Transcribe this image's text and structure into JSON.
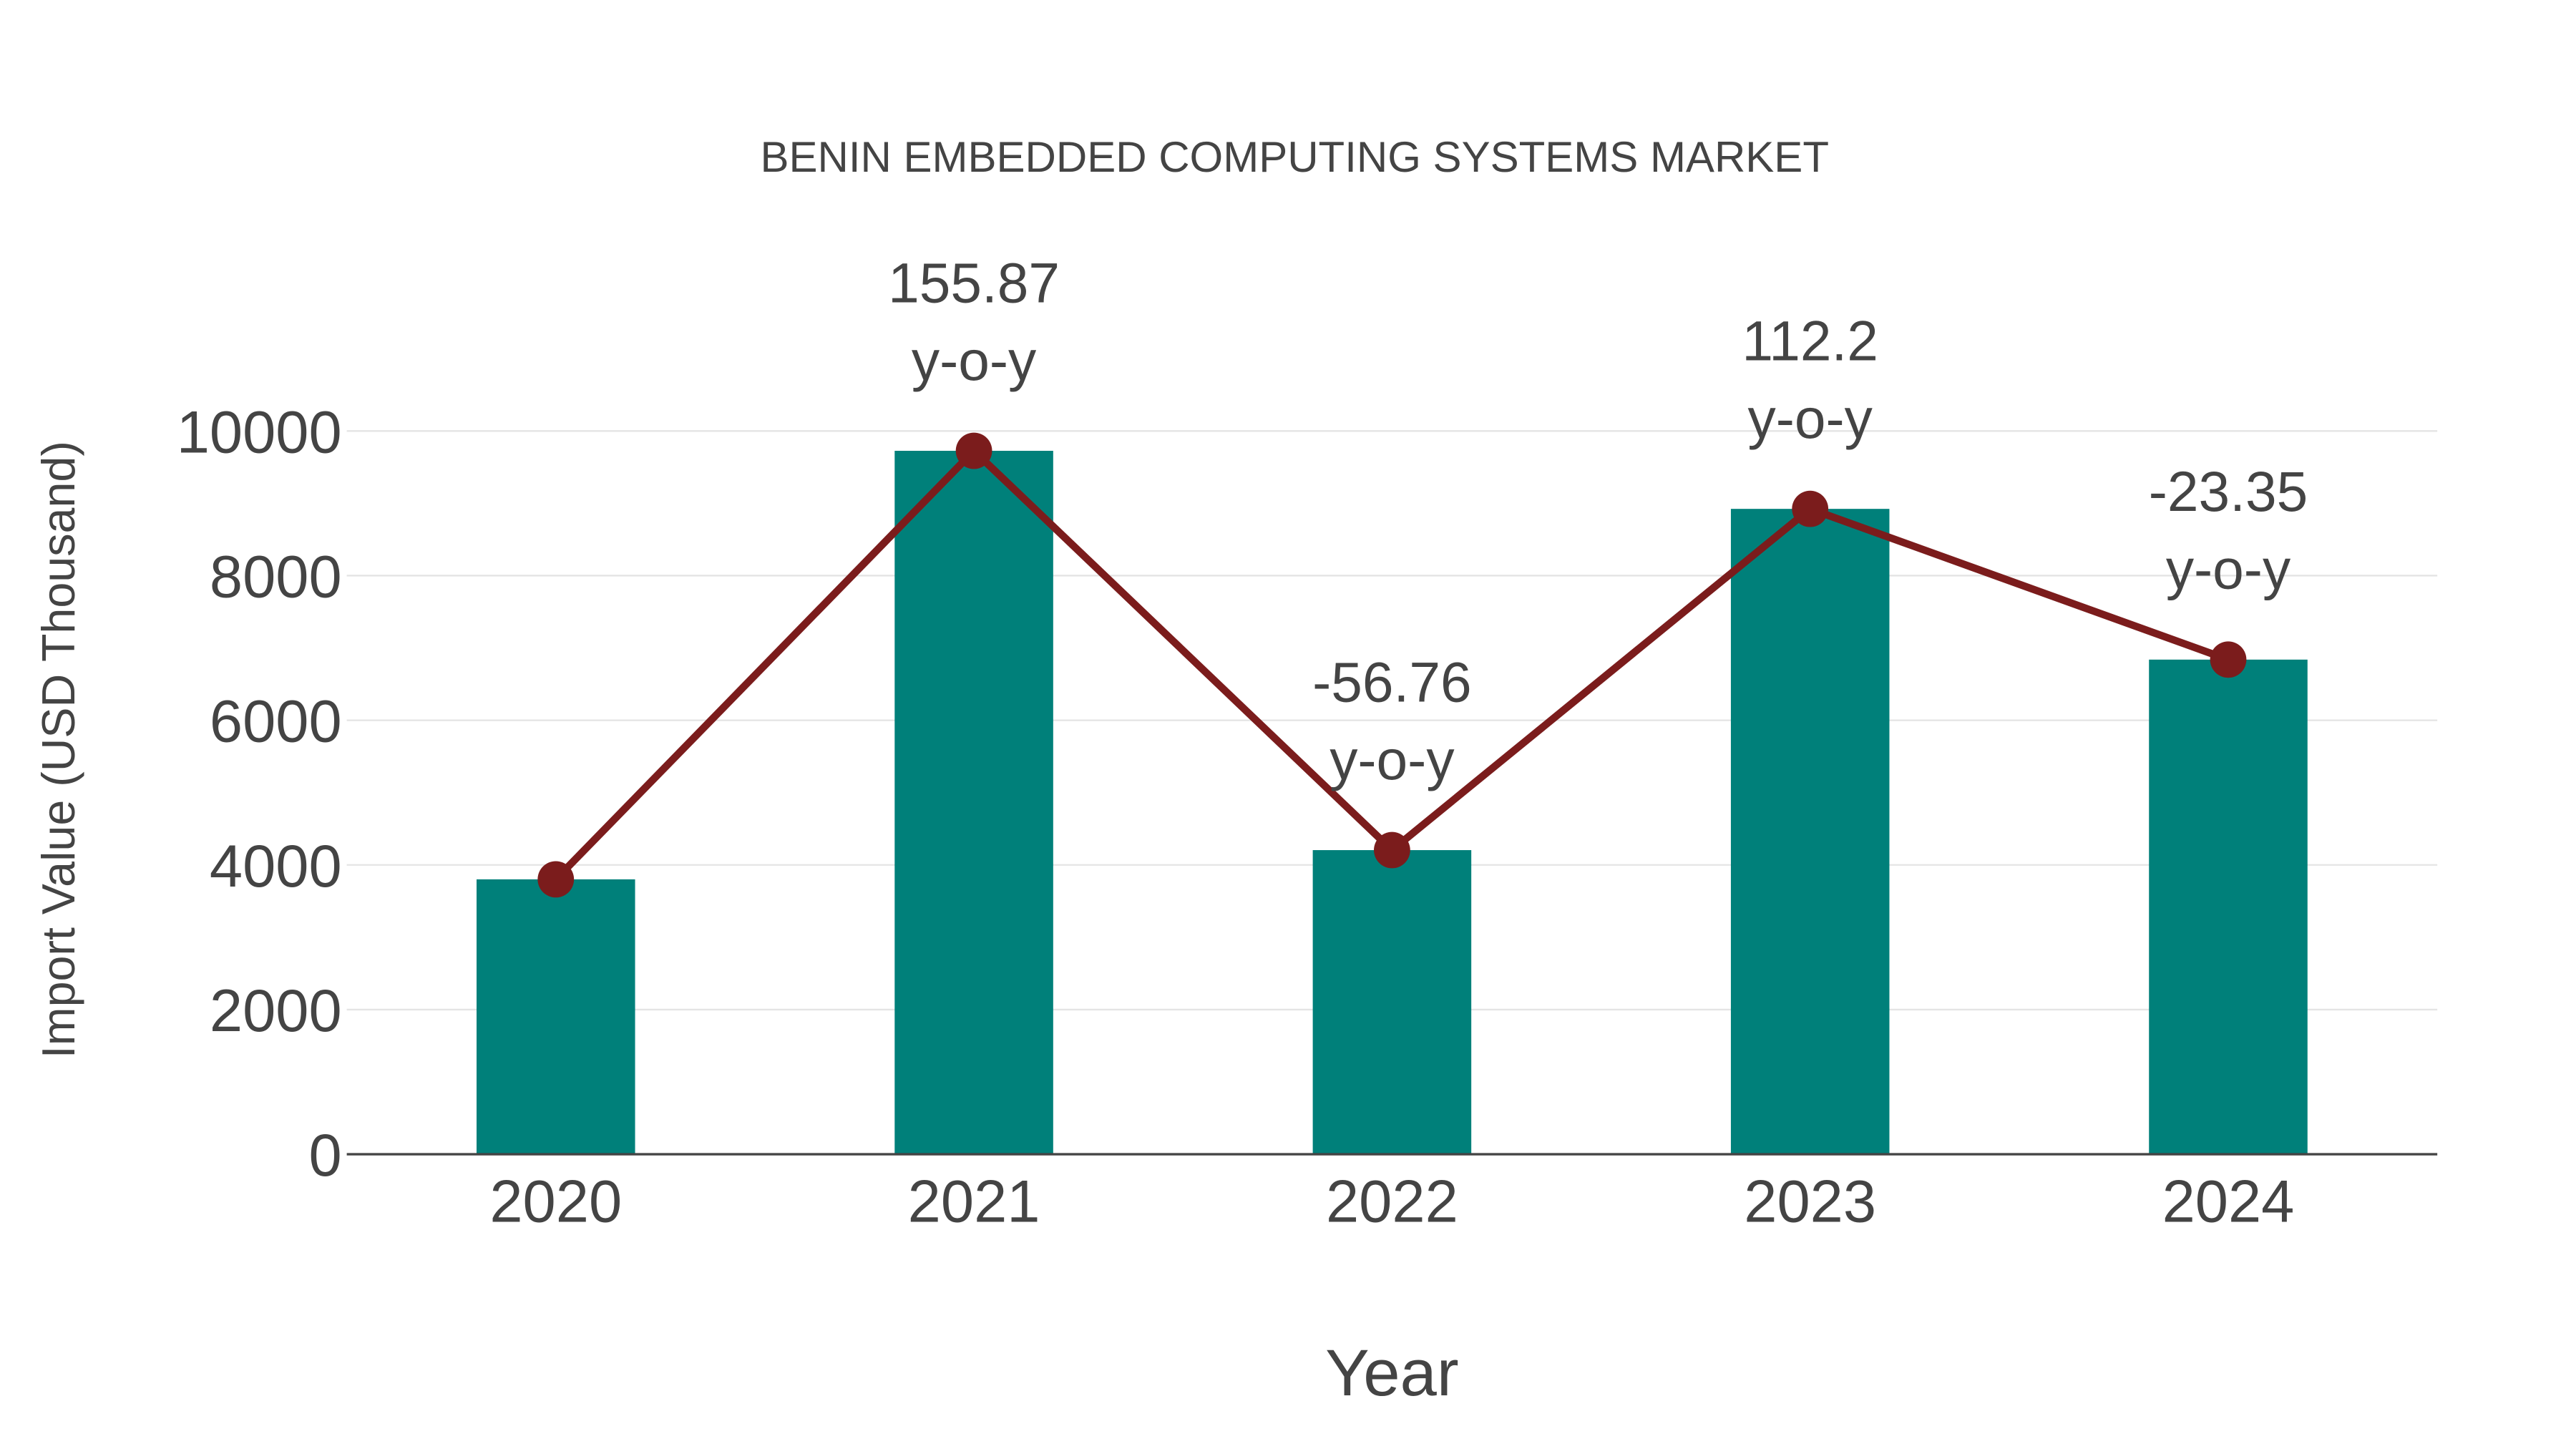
{
  "chart_data": {
    "type": "bar",
    "title": "BENIN EMBEDDED COMPUTING SYSTEMS MARKET",
    "xlabel": "Year",
    "ylabel": "Import Value (USD Thousand)",
    "categories": [
      "2020",
      "2021",
      "2022",
      "2023",
      "2024"
    ],
    "ylim": [
      0,
      10000
    ],
    "yticks": [
      0,
      2000,
      4000,
      6000,
      8000,
      10000
    ],
    "grid": true,
    "series": [
      {
        "name": "Import Value",
        "type": "bar",
        "color": "#00807a",
        "values": [
          3801,
          9726,
          4205,
          8923,
          6839
        ]
      },
      {
        "name": "Trend",
        "type": "line",
        "color": "#7b1c1c",
        "values": [
          3801,
          9726,
          4205,
          8923,
          6839
        ]
      }
    ],
    "annotations": [
      {
        "category": "2021",
        "value": "155.87",
        "suffix": "y-o-y"
      },
      {
        "category": "2022",
        "value": "-56.76",
        "suffix": "y-o-y"
      },
      {
        "category": "2023",
        "value": "112.2",
        "suffix": "y-o-y"
      },
      {
        "category": "2024",
        "value": "-23.35",
        "suffix": "y-o-y"
      }
    ]
  }
}
